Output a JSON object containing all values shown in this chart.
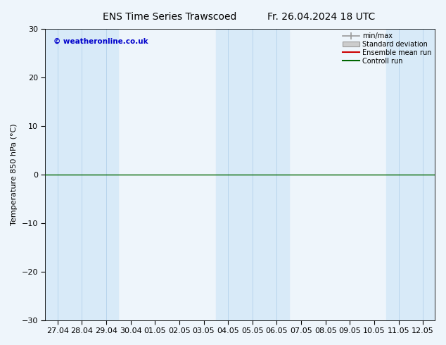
{
  "title_left": "ENS Time Series Trawscoed",
  "title_right": "Fr. 26.04.2024 18 UTC",
  "ylabel": "Temperature 850 hPa (°C)",
  "watermark": "© weatheronline.co.uk",
  "ylim": [
    -30,
    30
  ],
  "yticks": [
    -30,
    -20,
    -10,
    0,
    10,
    20,
    30
  ],
  "x_labels": [
    "27.04",
    "28.04",
    "29.04",
    "30.04",
    "01.05",
    "02.05",
    "03.05",
    "04.05",
    "05.05",
    "06.05",
    "07.05",
    "08.05",
    "09.05",
    "10.05",
    "11.05",
    "12.05"
  ],
  "legend_labels": [
    "min/max",
    "Standard deviation",
    "Ensemble mean run",
    "Controll run"
  ],
  "band_color": "#d8eaf8",
  "band_color_dark": "#b8d4ec",
  "background_color": "#eef5fb",
  "plot_bg_color": "#eef5fb",
  "zero_line_color": "#006600",
  "title_fontsize": 10,
  "label_fontsize": 8,
  "tick_fontsize": 8,
  "blue_band_ranges": [
    [
      0,
      2
    ],
    [
      7,
      9
    ],
    [
      14,
      15
    ]
  ],
  "blue_band_dividers": [
    1,
    8,
    14.5
  ]
}
